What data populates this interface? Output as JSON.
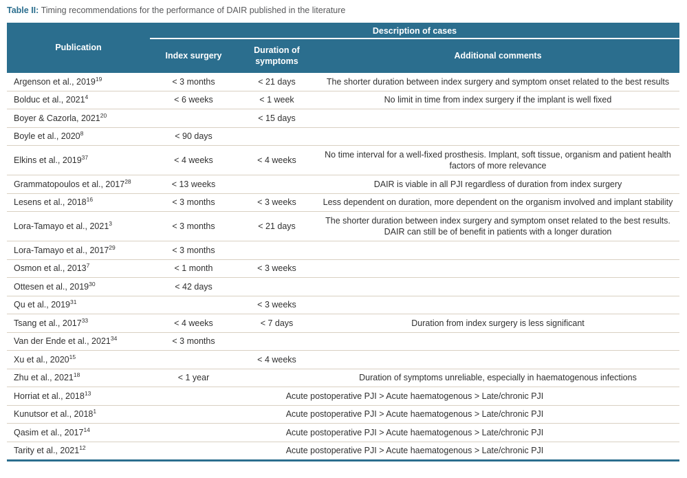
{
  "caption": {
    "label": "Table II:",
    "text": "Timing recommendations for the performance of DAIR published in the literature"
  },
  "colors": {
    "header_bg": "#2b6e8e",
    "accent_teal": "#2b6e8e",
    "row_divider": "#d9d0c2",
    "caption_gray": "#58595b",
    "body_text": "#303030"
  },
  "table": {
    "header": {
      "publication": "Publication",
      "description_of_cases": "Description of cases",
      "index_surgery": "Index surgery",
      "duration_of_symptoms": "Duration of symptoms",
      "additional_comments": "Additional comments"
    },
    "rows": [
      {
        "publication": "Argenson et al., 2019",
        "ref": "19",
        "index_surgery": "< 3 months",
        "duration": "< 21 days",
        "comments": "The shorter duration between index surgery and symptom onset related to the best results"
      },
      {
        "publication": "Bolduc et al., 2021",
        "ref": "4",
        "index_surgery": "< 6 weeks",
        "duration": "< 1 week",
        "comments": "No limit in time from index surgery if the implant is well fixed"
      },
      {
        "publication": "Boyer & Cazorla, 2021",
        "ref": "20",
        "index_surgery": "",
        "duration": "< 15 days",
        "comments": ""
      },
      {
        "publication": "Boyle et al., 2020",
        "ref": "8",
        "index_surgery": "< 90 days",
        "duration": "",
        "comments": ""
      },
      {
        "publication": "Elkins et al., 2019",
        "ref": "37",
        "index_surgery": "< 4 weeks",
        "duration": "< 4 weeks",
        "comments": "No time interval for a well-fixed prosthesis. Implant, soft tissue, organism and patient health factors of more relevance"
      },
      {
        "publication": "Grammatopoulos et al., 2017",
        "ref": "28",
        "index_surgery": "< 13 weeks",
        "duration": "",
        "comments": "DAIR is viable in all PJI regardless of duration from index surgery"
      },
      {
        "publication": "Lesens et al., 2018",
        "ref": "16",
        "index_surgery": "< 3 months",
        "duration": "< 3 weeks",
        "comments": "Less dependent on duration, more dependent on the organism involved and implant stability"
      },
      {
        "publication": "Lora-Tamayo et al., 2021",
        "ref": "3",
        "index_surgery": "< 3 months",
        "duration": "< 21 days",
        "comments": "The shorter duration between index surgery and symptom onset related to the best results. DAIR can still be of benefit in patients with a longer duration"
      },
      {
        "publication": "Lora-Tamayo et al., 2017",
        "ref": "29",
        "index_surgery": "< 3 months",
        "duration": "",
        "comments": ""
      },
      {
        "publication": "Osmon et al., 2013",
        "ref": "7",
        "index_surgery": "< 1 month",
        "duration": "< 3 weeks",
        "comments": ""
      },
      {
        "publication": "Ottesen et al., 2019",
        "ref": "30",
        "index_surgery": "< 42 days",
        "duration": "",
        "comments": ""
      },
      {
        "publication": "Qu et al., 2019",
        "ref": "31",
        "index_surgery": "",
        "duration": "< 3 weeks",
        "comments": ""
      },
      {
        "publication": "Tsang et al., 2017",
        "ref": "33",
        "index_surgery": "< 4 weeks",
        "duration": "< 7 days",
        "comments": "Duration from index surgery is less significant"
      },
      {
        "publication": "Van der Ende et al., 2021",
        "ref": "34",
        "index_surgery": "< 3 months",
        "duration": "",
        "comments": ""
      },
      {
        "publication": "Xu et al., 2020",
        "ref": "15",
        "index_surgery": "",
        "duration": "< 4 weeks",
        "comments": ""
      },
      {
        "publication": "Zhu et al., 2021",
        "ref": "18",
        "index_surgery": "< 1 year",
        "duration": "",
        "comments": "Duration of symptoms unreliable, especially in haematogenous infections"
      },
      {
        "publication": "Horriat et al., 2018",
        "ref": "13",
        "span": "Acute postoperative PJI > Acute haematogenous > Late/chronic PJI"
      },
      {
        "publication": "Kunutsor et al., 2018",
        "ref": "1",
        "span": "Acute postoperative PJI > Acute haematogenous > Late/chronic PJI"
      },
      {
        "publication": "Qasim et al., 2017",
        "ref": "14",
        "span": "Acute postoperative PJI > Acute haematogenous > Late/chronic PJI"
      },
      {
        "publication": "Tarity et al., 2021",
        "ref": "12",
        "span": "Acute postoperative PJI > Acute haematogenous > Late/chronic PJI"
      }
    ]
  }
}
